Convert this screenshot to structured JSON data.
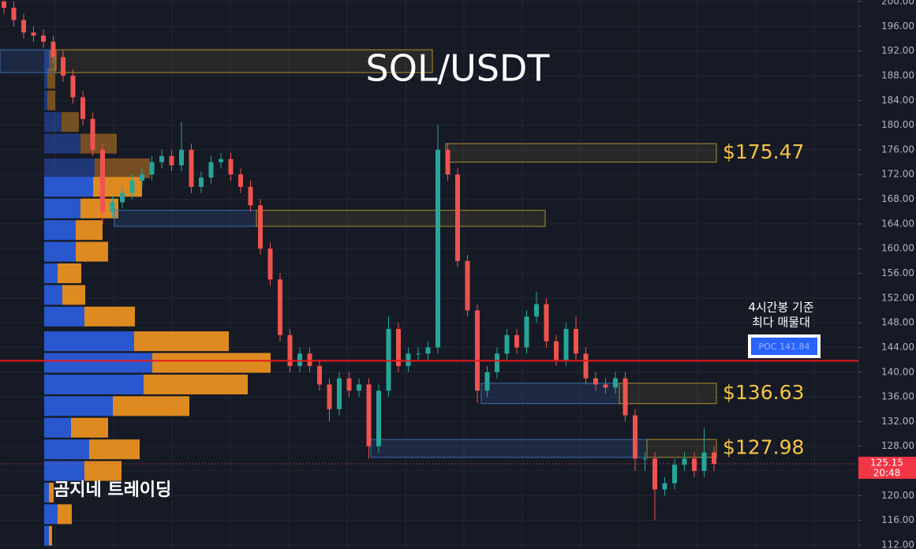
{
  "chart_data": {
    "type": "candlestick",
    "title": "SOL/USDT",
    "watermark": "곰지네 트레이딩",
    "up_color": "#26a69a",
    "down_color": "#ef5350",
    "ylim": [
      112,
      200
    ],
    "yticks": [
      {
        "value": 112,
        "label": "112.00"
      },
      {
        "value": 116,
        "label": "116.00"
      },
      {
        "value": 120,
        "label": "120.00"
      },
      {
        "value": 124,
        "label": "124.00"
      },
      {
        "value": 128,
        "label": "128.00"
      },
      {
        "value": 132,
        "label": "132.00"
      },
      {
        "value": 136,
        "label": "136.00"
      },
      {
        "value": 140,
        "label": "140.00"
      },
      {
        "value": 144,
        "label": "144.00"
      },
      {
        "value": 148,
        "label": "148.00"
      },
      {
        "value": 152,
        "label": "152.00"
      },
      {
        "value": 156,
        "label": "156.00"
      },
      {
        "value": 160,
        "label": "160.00"
      },
      {
        "value": 164,
        "label": "164.00"
      },
      {
        "value": 168,
        "label": "168.00"
      },
      {
        "value": 172,
        "label": "172.00"
      },
      {
        "value": 176,
        "label": "176.00"
      },
      {
        "value": 180,
        "label": "180.00"
      },
      {
        "value": 184,
        "label": "184.00"
      },
      {
        "value": 188,
        "label": "188.00"
      },
      {
        "value": 192,
        "label": "192.00"
      },
      {
        "value": 196,
        "label": "196.00"
      },
      {
        "value": 200,
        "label": "200.00"
      }
    ],
    "grid": true,
    "open": [
      200,
      199,
      197,
      195,
      194.5,
      193.5,
      191,
      188,
      184.5,
      181,
      176,
      166,
      167.5,
      169,
      171,
      172,
      174,
      175,
      173.5,
      176,
      170,
      171.5,
      174,
      174.5,
      172,
      170,
      167,
      160,
      155,
      146,
      141,
      143,
      141,
      138,
      134,
      139,
      137,
      138,
      128,
      137,
      147,
      141,
      143,
      143,
      144,
      176,
      172,
      158,
      150,
      137,
      140,
      143,
      146,
      144,
      149,
      151,
      145,
      142,
      147,
      143,
      139,
      138,
      137.5,
      139,
      133,
      126,
      126,
      121,
      122,
      125,
      126,
      124,
      127
    ],
    "high": [
      201,
      200,
      198,
      196,
      195.5,
      194.5,
      192,
      189,
      185.5,
      182,
      177,
      168.5,
      170,
      172,
      173,
      175,
      176,
      176,
      180.5,
      177,
      172.5,
      175,
      175.5,
      175.5,
      173,
      171,
      168,
      161,
      156,
      147,
      144,
      144,
      142,
      139,
      140,
      140,
      139,
      139,
      138,
      149,
      148,
      144,
      144,
      145,
      180,
      177,
      173,
      159,
      151,
      141,
      144,
      147,
      147,
      150,
      153,
      152,
      146,
      148,
      149,
      144,
      140,
      139,
      140,
      140,
      134,
      127,
      127,
      123,
      126,
      127,
      127,
      131,
      128
    ],
    "low": [
      198,
      196,
      194,
      193.5,
      192.5,
      190,
      187,
      183.5,
      180,
      175,
      164,
      165,
      166.5,
      168,
      170,
      171,
      173,
      172.5,
      172.5,
      169,
      169,
      170.5,
      173,
      171,
      169,
      166,
      159,
      154,
      145,
      140,
      140,
      140,
      137,
      132,
      133,
      136,
      136,
      126,
      127,
      136,
      140,
      140,
      142,
      142,
      143,
      171,
      157,
      149,
      135,
      136,
      139,
      142,
      143,
      143,
      148,
      144,
      141,
      141,
      142,
      138,
      137,
      136.5,
      136.5,
      132,
      124,
      124,
      116,
      120,
      121,
      124,
      123,
      123,
      124
    ],
    "close": [
      199,
      197,
      195,
      194.5,
      193.5,
      191,
      188,
      184.5,
      181,
      176,
      166,
      167.5,
      169,
      171,
      172,
      174,
      175,
      173.5,
      176,
      170,
      171.5,
      174,
      174.5,
      172,
      170,
      167,
      160,
      155,
      146,
      141,
      143,
      141,
      138,
      134,
      139,
      137,
      138,
      128,
      137,
      147,
      141,
      143,
      143,
      144,
      176,
      172,
      158,
      150,
      137,
      140,
      143,
      146,
      144,
      149,
      151,
      145,
      142,
      147,
      143,
      139,
      138,
      137.5,
      139,
      133,
      126,
      126,
      121,
      122,
      125,
      126,
      124,
      127,
      125.15
    ],
    "volume_profile": {
      "levels": [
        190.5,
        187.5,
        184,
        180.5,
        177,
        173,
        170,
        166.5,
        163,
        159.5,
        156,
        152.5,
        149,
        145,
        141.5,
        138,
        134.5,
        131,
        127.5,
        124,
        120.5,
        117,
        113.5
      ],
      "buy_color": "#2a5bd7",
      "sell_color": "#e89020",
      "buy": [
        6,
        4,
        4,
        22,
        46,
        64,
        62,
        46,
        40,
        40,
        17,
        23,
        51,
        114,
        137,
        126,
        87,
        34,
        57,
        51,
        6,
        17,
        6
      ],
      "sell": [
        10,
        10,
        10,
        22,
        46,
        70,
        62,
        48,
        34,
        41,
        30,
        29,
        64,
        120,
        150,
        132,
        97,
        47,
        64,
        47,
        6,
        18,
        4
      ]
    },
    "zones": [
      {
        "low": 188.5,
        "high": 192.2
      },
      {
        "low": 174,
        "high": 177,
        "label": "$175.47"
      },
      {
        "low": 163.6,
        "high": 166.2
      },
      {
        "low": 134.9,
        "high": 138.2,
        "label": "$136.63"
      },
      {
        "low": 126.2,
        "high": 129.1,
        "label": "$127.98"
      }
    ],
    "poc": {
      "value": 141.84,
      "label": "POC 141.84",
      "note": [
        "4시간봉 기준",
        "최다 매물대"
      ],
      "color": "#e8191c"
    },
    "last_price": {
      "value": 125.15,
      "label": "125.15",
      "time": "20:48"
    }
  }
}
